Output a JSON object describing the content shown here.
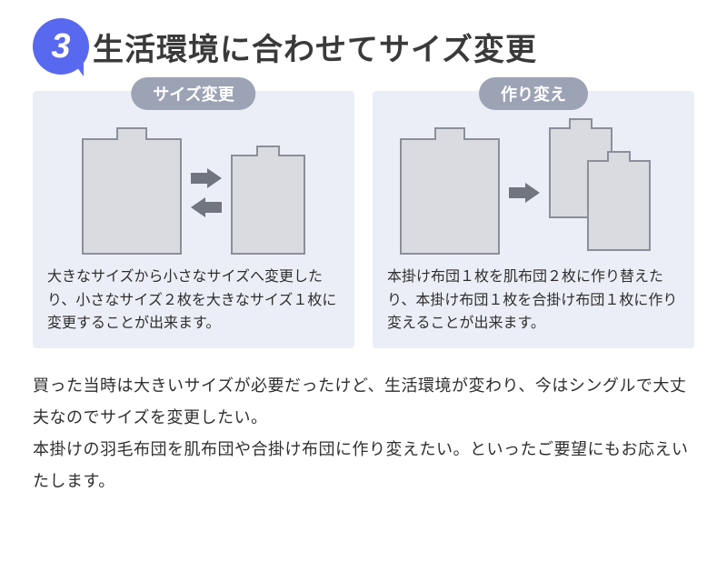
{
  "colors": {
    "badge_bg": "#5869f0",
    "badge_text": "#ffffff",
    "title_text": "#3a3a3a",
    "card_bg": "#eceef7",
    "label_bg": "#9ca3b5",
    "label_text": "#ffffff",
    "futon_fill": "#d9dbe0",
    "futon_border": "#8a8f99",
    "arrow": "#707580",
    "body_text": "#2f2f2f"
  },
  "header": {
    "number": "3",
    "title": "生活環境に合わせてサイズ変更"
  },
  "card_left": {
    "label": "サイズ変更",
    "text": "大きなサイズから小さなサイズへ変更したり、小さなサイズ２枚を大きなサイズ１枚に変更することが出来ます。"
  },
  "card_right": {
    "label": "作り変え",
    "text": "本掛け布団１枚を肌布団２枚に作り替えたり、本掛け布団１枚を合掛け布団１枚に作り変えることが出来ます。"
  },
  "body": {
    "p1": "買った当時は大きいサイズが必要だったけど、生活環境が変わり、今はシングルで大丈夫なのでサイズを変更したい。",
    "p2": "本掛けの羽毛布団を肌布団や合掛け布団に作り変えたい。といったご要望にもお応えいたします。"
  }
}
